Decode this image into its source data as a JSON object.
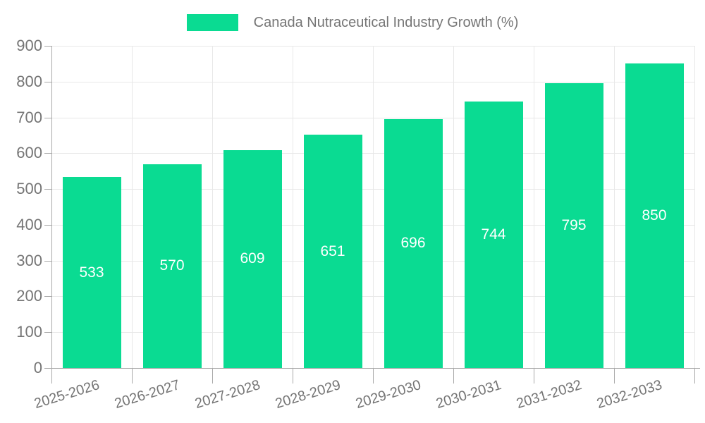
{
  "legend": {
    "label": "Canada Nutraceutical Industry Growth (%)"
  },
  "chart_data": {
    "type": "bar",
    "title": "Canada Nutraceutical Industry Growth (%)",
    "categories": [
      "2025-2026",
      "2026-2027",
      "2027-2028",
      "2028-2029",
      "2029-2030",
      "2030-2031",
      "2031-2032",
      "2032-2033"
    ],
    "values": [
      533,
      570,
      609,
      651,
      696,
      744,
      795,
      850
    ],
    "xlabel": "",
    "ylabel": "",
    "ylim": [
      0,
      900
    ],
    "yticks": [
      0,
      100,
      200,
      300,
      400,
      500,
      600,
      700,
      800,
      900
    ],
    "grid": true,
    "legend_position": "top",
    "value_labels_position": "inside-center",
    "colors": {
      "bar": "#0adb92",
      "value_label": "#ffffff",
      "grid": "#e8e8e8",
      "axis": "#a9a9a9",
      "tick_text": "#757575"
    }
  }
}
